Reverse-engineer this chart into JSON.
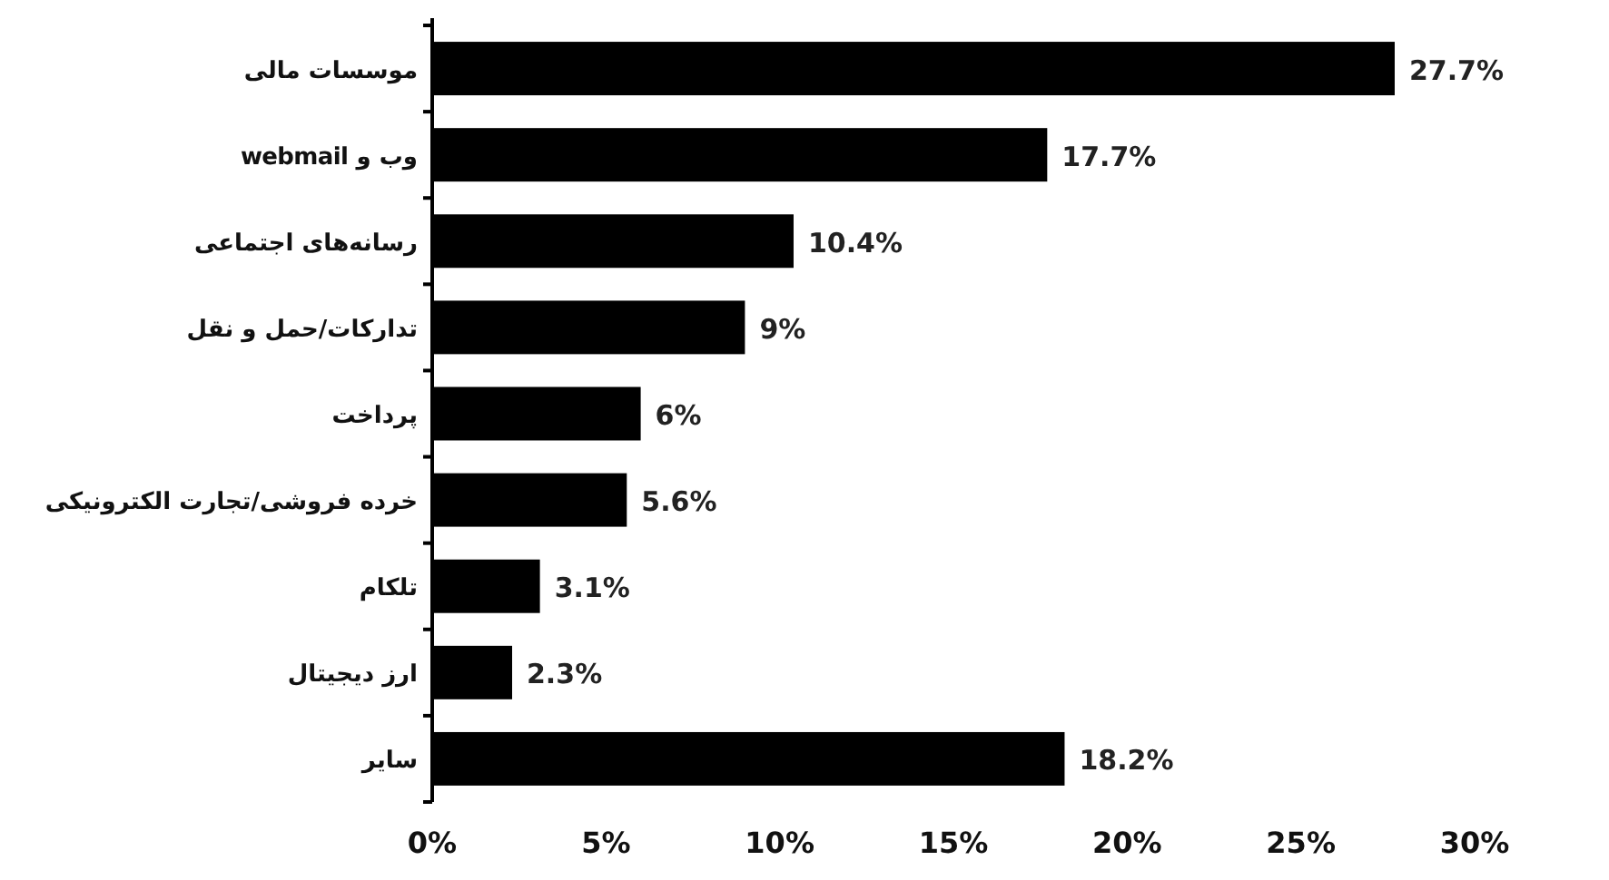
{
  "chart_data": {
    "type": "bar",
    "orientation": "horizontal",
    "categories": [
      "موسسات مالی",
      "وب و webmail",
      "رسانه‌های اجتماعی",
      "تدارکات/حمل و نقل",
      "پرداخت",
      "خرده فروشی/تجارت الکترونیکی",
      "تلکام",
      "ارز دیجیتال",
      "سایر"
    ],
    "values": [
      27.7,
      17.7,
      10.4,
      9,
      6,
      5.6,
      3.1,
      2.3,
      18.2
    ],
    "value_labels": [
      "27.7%",
      "17.7%",
      "10.4%",
      "9%",
      "6%",
      "5.6%",
      "3.1%",
      "2.3%",
      "18.2%"
    ],
    "color": "#000000",
    "xlim": [
      0,
      30
    ],
    "xticks": [
      {
        "value": 0,
        "label": "0%"
      },
      {
        "value": 5,
        "label": "5%"
      },
      {
        "value": 10,
        "label": "10%"
      },
      {
        "value": 15,
        "label": "15%"
      },
      {
        "value": 20,
        "label": "20%"
      },
      {
        "value": 25,
        "label": "25%"
      },
      {
        "value": 30,
        "label": "30%"
      }
    ],
    "grid": false
  }
}
